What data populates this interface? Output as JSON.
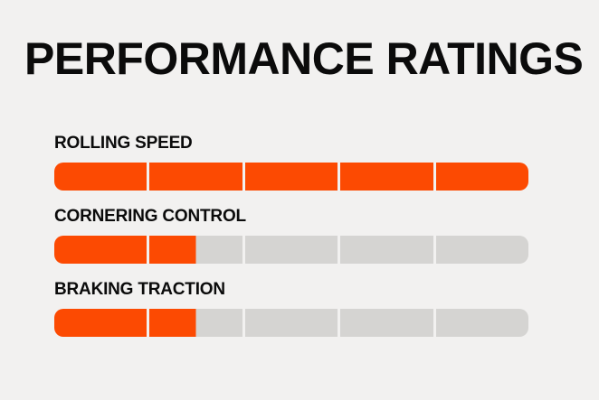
{
  "chart_data": {
    "type": "bar",
    "orientation": "horizontal",
    "title": "PERFORMANCE RATINGS",
    "categories": [
      "ROLLING SPEED",
      "CORNERING CONTROL",
      "BRAKING TRACTION"
    ],
    "values": [
      5,
      1.5,
      1.5
    ],
    "value_max": 5,
    "segments_per_bar": 5,
    "legend": "none",
    "grid": "off",
    "colors": {
      "filled": "#fc4a02",
      "empty": "#d5d4d2",
      "background": "#f2f1f0",
      "text": "#0b0b0b"
    }
  }
}
